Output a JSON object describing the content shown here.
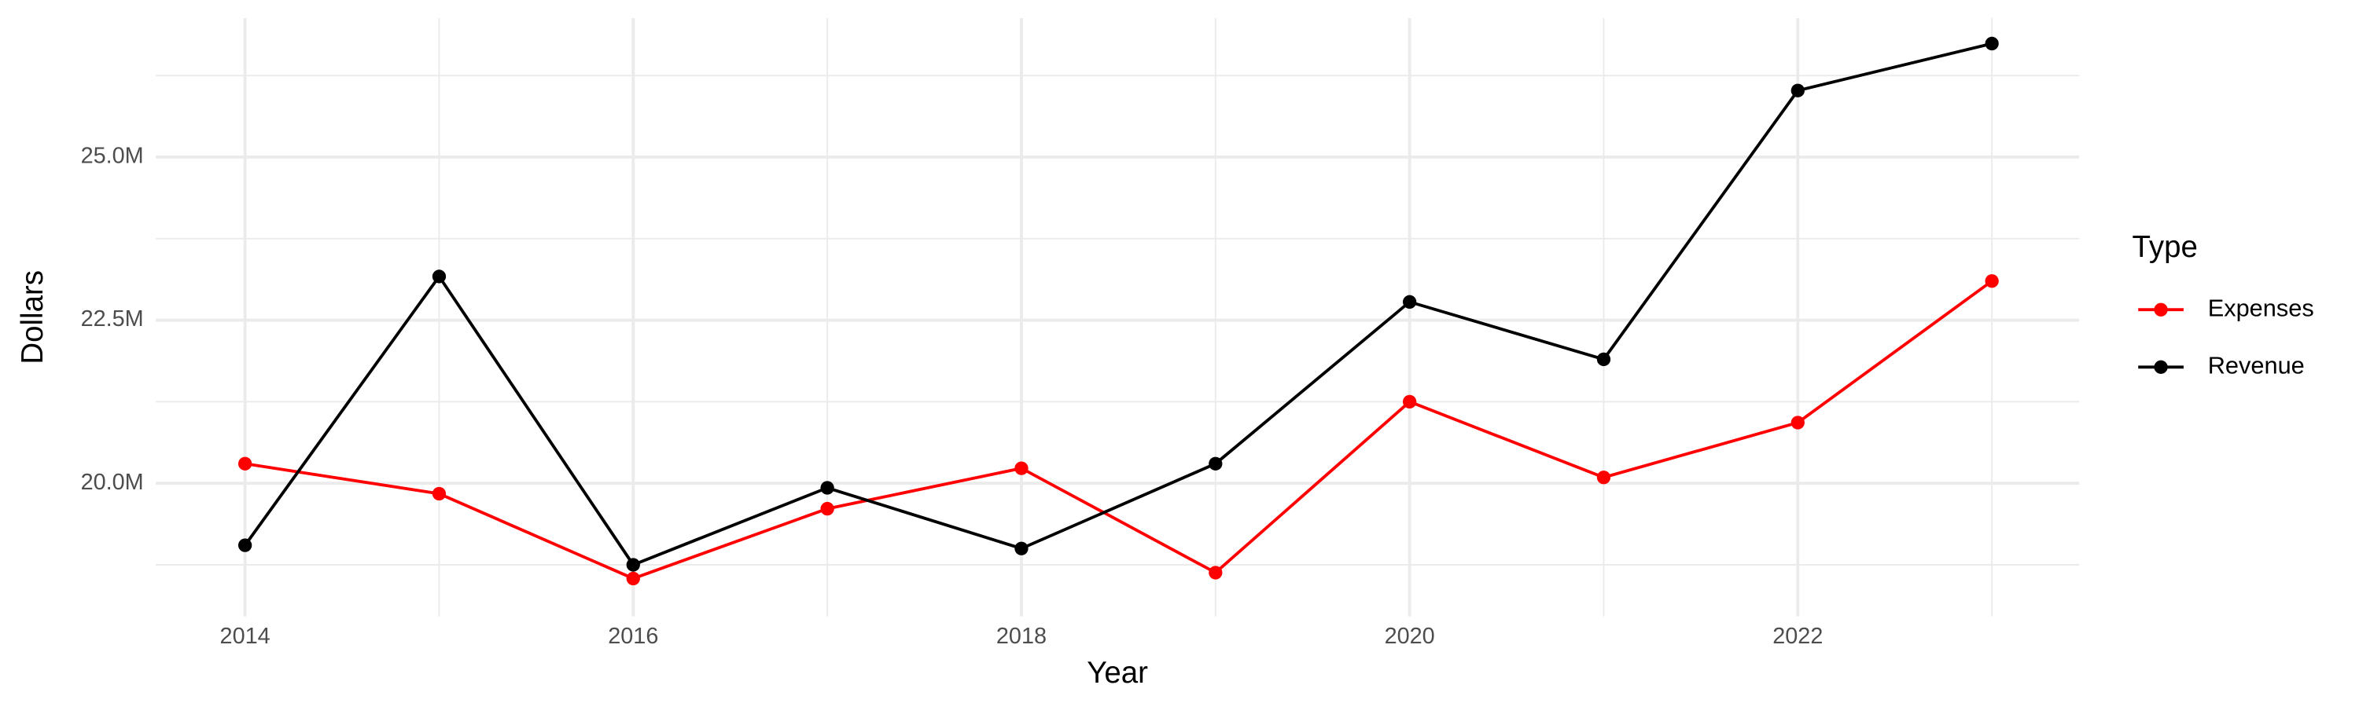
{
  "chart_data": {
    "type": "line",
    "x_label": "Year",
    "y_label": "Dollars",
    "legend_title": "Type",
    "legend": "right",
    "grid": true,
    "x": [
      2014,
      2015,
      2016,
      2017,
      2018,
      2019,
      2020,
      2021,
      2022,
      2023
    ],
    "series": [
      {
        "name": "Expenses",
        "color": "#ff0000",
        "values": [
          20300000,
          19840000,
          18540000,
          19610000,
          20230000,
          18630000,
          21250000,
          20090000,
          20930000,
          23100000
        ]
      },
      {
        "name": "Revenue",
        "color": "#000000",
        "values": [
          19050000,
          23170000,
          18750000,
          19930000,
          19000000,
          20300000,
          22780000,
          21900000,
          26020000,
          26740000
        ]
      }
    ],
    "xlim": [
      2013.54,
      2023.45
    ],
    "xticks": [
      2014,
      2016,
      2018,
      2020,
      2022
    ],
    "ylim": [
      17960000,
      27130000
    ],
    "yticks": [
      {
        "value": 20000000,
        "label": "20.0M"
      },
      {
        "value": 22500000,
        "label": "22.5M"
      },
      {
        "value": 25000000,
        "label": "25.0M"
      }
    ]
  }
}
